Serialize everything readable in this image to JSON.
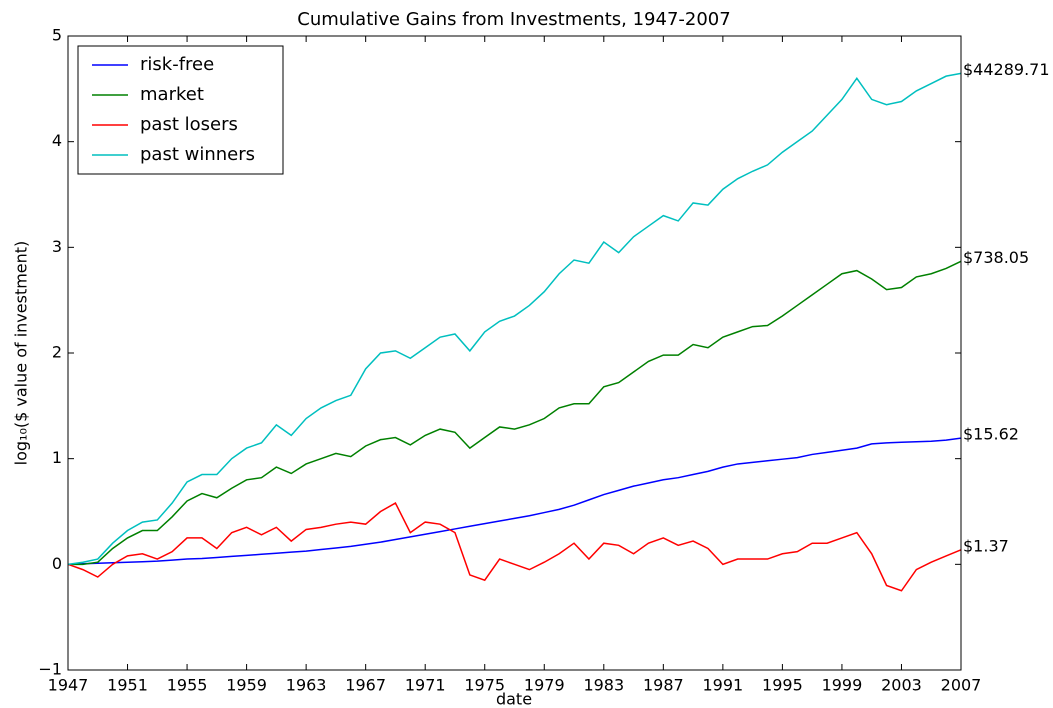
{
  "chart_data": {
    "type": "line",
    "title": "Cumulative Gains from Investments, 1947-2007",
    "x_label": "date",
    "y_label": "log₁₀($ value of investment)",
    "x": [
      1947,
      1948,
      1949,
      1950,
      1951,
      1952,
      1953,
      1954,
      1955,
      1956,
      1957,
      1958,
      1959,
      1960,
      1961,
      1962,
      1963,
      1964,
      1965,
      1966,
      1967,
      1968,
      1969,
      1970,
      1971,
      1972,
      1973,
      1974,
      1975,
      1976,
      1977,
      1978,
      1979,
      1980,
      1981,
      1982,
      1983,
      1984,
      1985,
      1986,
      1987,
      1988,
      1989,
      1990,
      1991,
      1992,
      1993,
      1994,
      1995,
      1996,
      1997,
      1998,
      1999,
      2000,
      2001,
      2002,
      2003,
      2004,
      2005,
      2006,
      2007
    ],
    "series": [
      {
        "name": "risk-free",
        "color": "#0000ff",
        "end_label": "$15.62",
        "values": [
          0,
          0.005,
          0.01,
          0.015,
          0.02,
          0.025,
          0.03,
          0.04,
          0.05,
          0.055,
          0.065,
          0.075,
          0.085,
          0.095,
          0.105,
          0.115,
          0.125,
          0.14,
          0.155,
          0.17,
          0.19,
          0.21,
          0.235,
          0.26,
          0.285,
          0.31,
          0.335,
          0.36,
          0.385,
          0.41,
          0.435,
          0.46,
          0.49,
          0.52,
          0.56,
          0.61,
          0.66,
          0.7,
          0.74,
          0.77,
          0.8,
          0.82,
          0.85,
          0.88,
          0.92,
          0.95,
          0.965,
          0.98,
          0.995,
          1.01,
          1.04,
          1.06,
          1.08,
          1.1,
          1.14,
          1.15,
          1.155,
          1.16,
          1.165,
          1.175,
          1.194
        ]
      },
      {
        "name": "market",
        "color": "#008000",
        "end_label": "$738.05",
        "values": [
          0,
          0,
          0.02,
          0.15,
          0.25,
          0.32,
          0.32,
          0.45,
          0.6,
          0.67,
          0.63,
          0.72,
          0.8,
          0.82,
          0.92,
          0.86,
          0.95,
          1.0,
          1.05,
          1.02,
          1.12,
          1.18,
          1.2,
          1.13,
          1.22,
          1.28,
          1.25,
          1.1,
          1.2,
          1.3,
          1.28,
          1.32,
          1.38,
          1.48,
          1.52,
          1.52,
          1.68,
          1.72,
          1.82,
          1.92,
          1.98,
          1.98,
          2.08,
          2.05,
          2.15,
          2.2,
          2.25,
          2.26,
          2.35,
          2.45,
          2.55,
          2.65,
          2.75,
          2.78,
          2.7,
          2.6,
          2.62,
          2.72,
          2.75,
          2.8,
          2.868
        ]
      },
      {
        "name": "past losers",
        "color": "#ff0000",
        "end_label": "$1.37",
        "values": [
          0,
          -0.05,
          -0.12,
          0.0,
          0.08,
          0.1,
          0.05,
          0.12,
          0.25,
          0.25,
          0.15,
          0.3,
          0.35,
          0.28,
          0.35,
          0.22,
          0.33,
          0.35,
          0.38,
          0.4,
          0.38,
          0.5,
          0.58,
          0.3,
          0.4,
          0.38,
          0.3,
          -0.1,
          -0.15,
          0.05,
          0.0,
          -0.05,
          0.02,
          0.1,
          0.2,
          0.05,
          0.2,
          0.18,
          0.1,
          0.2,
          0.25,
          0.18,
          0.22,
          0.15,
          0.0,
          0.05,
          0.05,
          0.05,
          0.1,
          0.12,
          0.2,
          0.2,
          0.25,
          0.3,
          0.1,
          -0.2,
          -0.25,
          -0.05,
          0.02,
          0.08,
          0.137
        ]
      },
      {
        "name": "past winners",
        "color": "#00bfbf",
        "end_label": "$44289.71",
        "values": [
          0,
          0.02,
          0.05,
          0.2,
          0.32,
          0.4,
          0.42,
          0.58,
          0.78,
          0.85,
          0.85,
          1.0,
          1.1,
          1.15,
          1.32,
          1.22,
          1.38,
          1.48,
          1.55,
          1.6,
          1.85,
          2.0,
          2.02,
          1.95,
          2.05,
          2.15,
          2.18,
          2.02,
          2.2,
          2.3,
          2.35,
          2.45,
          2.58,
          2.75,
          2.88,
          2.85,
          3.05,
          2.95,
          3.1,
          3.2,
          3.3,
          3.25,
          3.42,
          3.4,
          3.55,
          3.65,
          3.72,
          3.78,
          3.9,
          4.0,
          4.1,
          4.25,
          4.4,
          4.6,
          4.4,
          4.35,
          4.38,
          4.48,
          4.55,
          4.62,
          4.646
        ]
      }
    ],
    "xlim": [
      1947,
      2007
    ],
    "xticks": [
      1947,
      1951,
      1955,
      1959,
      1963,
      1967,
      1971,
      1975,
      1979,
      1983,
      1987,
      1991,
      1995,
      1999,
      2003,
      2007
    ],
    "ylim": [
      -1,
      5
    ],
    "yticks": [
      {
        "value": -1,
        "label": "−1"
      },
      0,
      1,
      2,
      3,
      4,
      5
    ],
    "grid": false,
    "legend": "upper-left"
  }
}
